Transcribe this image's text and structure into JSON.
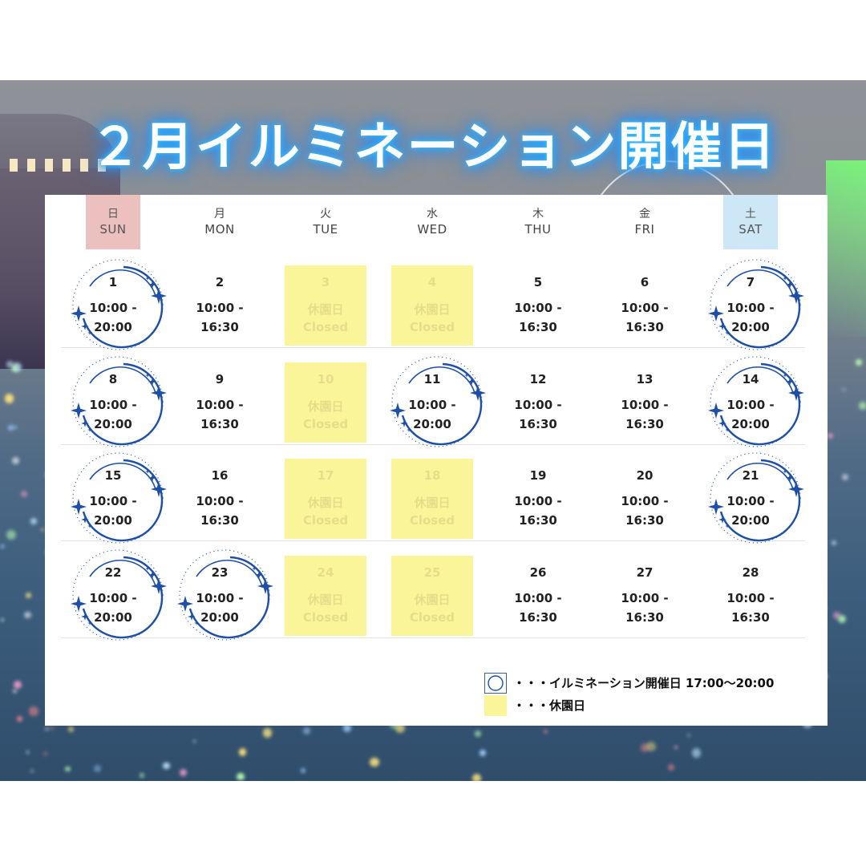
{
  "title": "２月イルミネーション開催日",
  "weekdays": [
    {
      "jp": "日",
      "en": "SUN",
      "highlight": "#ebc0bf"
    },
    {
      "jp": "月",
      "en": "MON"
    },
    {
      "jp": "火",
      "en": "TUE"
    },
    {
      "jp": "水",
      "en": "WED"
    },
    {
      "jp": "木",
      "en": "THU"
    },
    {
      "jp": "金",
      "en": "FRI"
    },
    {
      "jp": "土",
      "en": "SAT",
      "highlight": "#cde7f7"
    }
  ],
  "weeks": [
    [
      {
        "day": "1",
        "t1": "10:00 -",
        "t2": "20:00",
        "illumination": true
      },
      {
        "day": "2",
        "t1": "10:00 -",
        "t2": "16:30"
      },
      {
        "day": "3",
        "t1": "休園日",
        "t2": "Closed",
        "closed": true
      },
      {
        "day": "4",
        "t1": "休園日",
        "t2": "Closed",
        "closed": true
      },
      {
        "day": "5",
        "t1": "10:00 -",
        "t2": "16:30"
      },
      {
        "day": "6",
        "t1": "10:00 -",
        "t2": "16:30"
      },
      {
        "day": "7",
        "t1": "10:00 -",
        "t2": "20:00",
        "illumination": true
      }
    ],
    [
      {
        "day": "8",
        "t1": "10:00 -",
        "t2": "20:00",
        "illumination": true
      },
      {
        "day": "9",
        "t1": "10:00 -",
        "t2": "16:30"
      },
      {
        "day": "10",
        "t1": "休園日",
        "t2": "Closed",
        "closed": true
      },
      {
        "day": "11",
        "t1": "10:00 -",
        "t2": "20:00",
        "illumination": true
      },
      {
        "day": "12",
        "t1": "10:00 -",
        "t2": "16:30"
      },
      {
        "day": "13",
        "t1": "10:00 -",
        "t2": "16:30"
      },
      {
        "day": "14",
        "t1": "10:00 -",
        "t2": "20:00",
        "illumination": true
      }
    ],
    [
      {
        "day": "15",
        "t1": "10:00 -",
        "t2": "20:00",
        "illumination": true
      },
      {
        "day": "16",
        "t1": "10:00 -",
        "t2": "16:30"
      },
      {
        "day": "17",
        "t1": "休園日",
        "t2": "Closed",
        "closed": true
      },
      {
        "day": "18",
        "t1": "休園日",
        "t2": "Closed",
        "closed": true
      },
      {
        "day": "19",
        "t1": "10:00 -",
        "t2": "16:30"
      },
      {
        "day": "20",
        "t1": "10:00 -",
        "t2": "16:30"
      },
      {
        "day": "21",
        "t1": "10:00 -",
        "t2": "20:00",
        "illumination": true
      }
    ],
    [
      {
        "day": "22",
        "t1": "10:00 -",
        "t2": "20:00",
        "illumination": true
      },
      {
        "day": "23",
        "t1": "10:00 -",
        "t2": "20:00",
        "illumination": true
      },
      {
        "day": "24",
        "t1": "休園日",
        "t2": "Closed",
        "closed": true
      },
      {
        "day": "25",
        "t1": "休園日",
        "t2": "Closed",
        "closed": true
      },
      {
        "day": "26",
        "t1": "10:00 -",
        "t2": "16:30"
      },
      {
        "day": "27",
        "t1": "10:00 -",
        "t2": "16:30"
      },
      {
        "day": "28",
        "t1": "10:00 -",
        "t2": "16:30"
      }
    ]
  ],
  "legend": {
    "illumination": "・・・イルミネーション開催日 17:00〜20:00",
    "closed": "・・・休園日"
  },
  "colors": {
    "closed_fill": "#fbf59a",
    "ring_stroke": "#1d4fa8",
    "title_glow": "#2aa9ff"
  }
}
